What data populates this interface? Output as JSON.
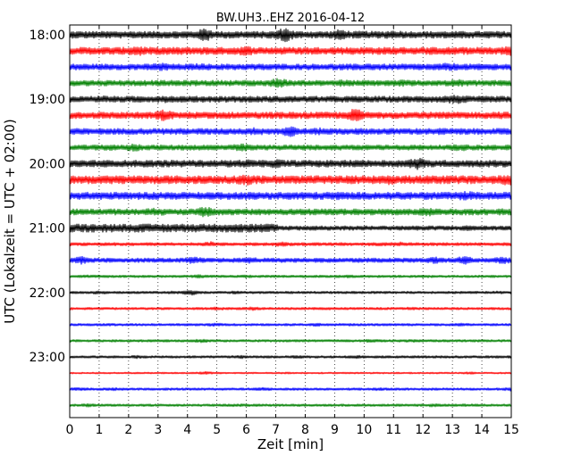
{
  "chart_data": {
    "type": "line",
    "title": "BW.UH3..EHZ 2016-04-12",
    "xlabel": "Zeit  [min]",
    "ylabel": "UTC (Lokalzeit = UTC + 02:00)",
    "xlim": [
      0,
      15
    ],
    "x_ticks": [
      "0",
      "1",
      "2",
      "3",
      "4",
      "5",
      "6",
      "7",
      "8",
      "9",
      "10",
      "11",
      "12",
      "13",
      "14",
      "15"
    ],
    "y_ticks": [
      "18:00",
      "19:00",
      "20:00",
      "21:00",
      "22:00",
      "23:00"
    ],
    "grid": "vertical dotted at each minute",
    "trace_colors": [
      "#000000",
      "#ff0000",
      "#0000ff",
      "#008000"
    ],
    "traces_per_hour": 4,
    "minutes_per_trace": 15,
    "traces": [
      {
        "start": "18:00",
        "color": "#000000",
        "amplitude": 0.85,
        "events": [
          [
            4.6,
            2.0
          ],
          [
            7.3,
            2.2
          ],
          [
            9.2,
            1.6
          ],
          [
            11.0,
            1.3
          ],
          [
            10.0,
            1.1
          ]
        ]
      },
      {
        "start": "18:15",
        "color": "#ff0000",
        "amplitude": 0.9,
        "events": [
          [
            2.3,
            1.4
          ],
          [
            6.0,
            1.3
          ],
          [
            15.0,
            1.5
          ]
        ]
      },
      {
        "start": "18:30",
        "color": "#0000ff",
        "amplitude": 0.75,
        "events": [
          [
            3.1,
            1.4
          ],
          [
            4.4,
            1.2
          ],
          [
            10.2,
            1.2
          ],
          [
            12.8,
            1.3
          ],
          [
            13.2,
            1.2
          ]
        ]
      },
      {
        "start": "18:45",
        "color": "#008000",
        "amplitude": 0.7,
        "events": [
          [
            7.1,
            1.9
          ],
          [
            9.2,
            1.2
          ],
          [
            11.3,
            1.2
          ],
          [
            13.2,
            1.3
          ]
        ]
      },
      {
        "start": "19:00",
        "color": "#000000",
        "amplitude": 0.75,
        "events": [
          [
            1.1,
            1.2
          ],
          [
            3.2,
            1.2
          ],
          [
            13.2,
            1.4
          ],
          [
            12.9,
            1.2
          ]
        ]
      },
      {
        "start": "19:15",
        "color": "#ff0000",
        "amplitude": 0.8,
        "events": [
          [
            3.2,
            1.8
          ],
          [
            9.7,
            2.2
          ],
          [
            12.0,
            1.1
          ],
          [
            14.6,
            1.2
          ]
        ]
      },
      {
        "start": "19:30",
        "color": "#0000ff",
        "amplitude": 0.75,
        "events": [
          [
            6.3,
            1.3
          ],
          [
            7.5,
            1.8
          ],
          [
            8.5,
            1.2
          ],
          [
            12.7,
            1.1
          ]
        ]
      },
      {
        "start": "19:45",
        "color": "#008000",
        "amplitude": 0.65,
        "events": [
          [
            1.2,
            1.2
          ],
          [
            2.2,
            1.5
          ],
          [
            5.8,
            1.3
          ],
          [
            6.0,
            1.2
          ],
          [
            13.3,
            1.3
          ]
        ]
      },
      {
        "start": "20:00",
        "color": "#000000",
        "amplitude": 0.85,
        "events": [
          [
            6.0,
            1.2
          ],
          [
            7.0,
            1.3
          ],
          [
            11.8,
            1.8
          ],
          [
            9.7,
            1.2
          ]
        ]
      },
      {
        "start": "20:15",
        "color": "#ff0000",
        "amplitude": 1.0,
        "events": [
          [
            6.0,
            1.4
          ],
          [
            10.8,
            1.3
          ],
          [
            14.9,
            1.5
          ]
        ]
      },
      {
        "start": "20:30",
        "color": "#0000ff",
        "amplitude": 0.9,
        "events": [
          [
            13.5,
            1.3
          ],
          [
            9.0,
            1.1
          ]
        ]
      },
      {
        "start": "20:45",
        "color": "#008000",
        "amplitude": 0.75,
        "events": [
          [
            4.6,
            1.8
          ],
          [
            2.9,
            1.3
          ],
          [
            12.2,
            1.4
          ],
          [
            14.8,
            1.2
          ]
        ]
      },
      {
        "start": "21:00",
        "color": "#000000",
        "amplitude": 1.0,
        "shape": "first-half",
        "events": [
          [
            13.6,
            1.2
          ]
        ]
      },
      {
        "start": "21:15",
        "color": "#ff0000",
        "amplitude": 0.4,
        "events": [
          [
            4.8,
            1.6
          ],
          [
            7.2,
            1.5
          ],
          [
            11.2,
            1.4
          ],
          [
            10.7,
            1.3
          ]
        ]
      },
      {
        "start": "21:30",
        "color": "#0000ff",
        "amplitude": 0.55,
        "events": [
          [
            0.4,
            1.8
          ],
          [
            4.2,
            1.6
          ],
          [
            6.1,
            1.5
          ],
          [
            12.4,
            1.6
          ],
          [
            13.4,
            2.0
          ],
          [
            14.7,
            1.7
          ]
        ]
      },
      {
        "start": "21:45",
        "color": "#008000",
        "amplitude": 0.3,
        "events": [
          [
            0.7,
            1.3
          ],
          [
            4.4,
            1.6
          ],
          [
            6.0,
            1.3
          ],
          [
            9.4,
            1.3
          ],
          [
            12.0,
            1.2
          ]
        ]
      },
      {
        "start": "22:00",
        "color": "#000000",
        "amplitude": 0.3,
        "events": [
          [
            1.0,
            1.5
          ],
          [
            3.5,
            1.2
          ],
          [
            4.1,
            2.4
          ],
          [
            5.6,
            1.3
          ],
          [
            14.5,
            1.2
          ]
        ]
      },
      {
        "start": "22:15",
        "color": "#ff0000",
        "amplitude": 0.3,
        "events": [
          [
            5.0,
            1.4
          ],
          [
            6.2,
            1.6
          ],
          [
            8.6,
            1.3
          ],
          [
            11.6,
            1.3
          ]
        ]
      },
      {
        "start": "22:30",
        "color": "#0000ff",
        "amplitude": 0.3,
        "events": [
          [
            1.3,
            1.2
          ],
          [
            4.9,
            1.5
          ],
          [
            8.4,
            1.5
          ],
          [
            9.3,
            1.2
          ],
          [
            13.3,
            1.3
          ]
        ]
      },
      {
        "start": "22:45",
        "color": "#008000",
        "amplitude": 0.3,
        "events": [
          [
            4.5,
            1.6
          ],
          [
            10.2,
            1.4
          ],
          [
            11.6,
            1.3
          ]
        ]
      },
      {
        "start": "23:00",
        "color": "#000000",
        "amplitude": 0.3,
        "events": [
          [
            2.3,
            1.4
          ],
          [
            5.8,
            1.5
          ],
          [
            7.7,
            1.3
          ],
          [
            9.8,
            1.4
          ]
        ]
      },
      {
        "start": "23:15",
        "color": "#ff0000",
        "amplitude": 0.2,
        "events": [
          [
            4.6,
            2.0
          ],
          [
            7.3,
            1.3
          ],
          [
            13.6,
            1.5
          ]
        ]
      },
      {
        "start": "23:30",
        "color": "#0000ff",
        "amplitude": 0.3,
        "events": [
          [
            0.3,
            1.5
          ],
          [
            1.5,
            1.3
          ],
          [
            6.6,
            1.5
          ],
          [
            10.5,
            1.3
          ],
          [
            15.0,
            1.6
          ]
        ]
      },
      {
        "start": "23:45",
        "color": "#008000",
        "amplitude": 0.3,
        "events": [
          [
            0.6,
            1.5
          ],
          [
            5.7,
            1.3
          ],
          [
            12.4,
            1.5
          ],
          [
            13.5,
            1.2
          ]
        ]
      }
    ]
  }
}
